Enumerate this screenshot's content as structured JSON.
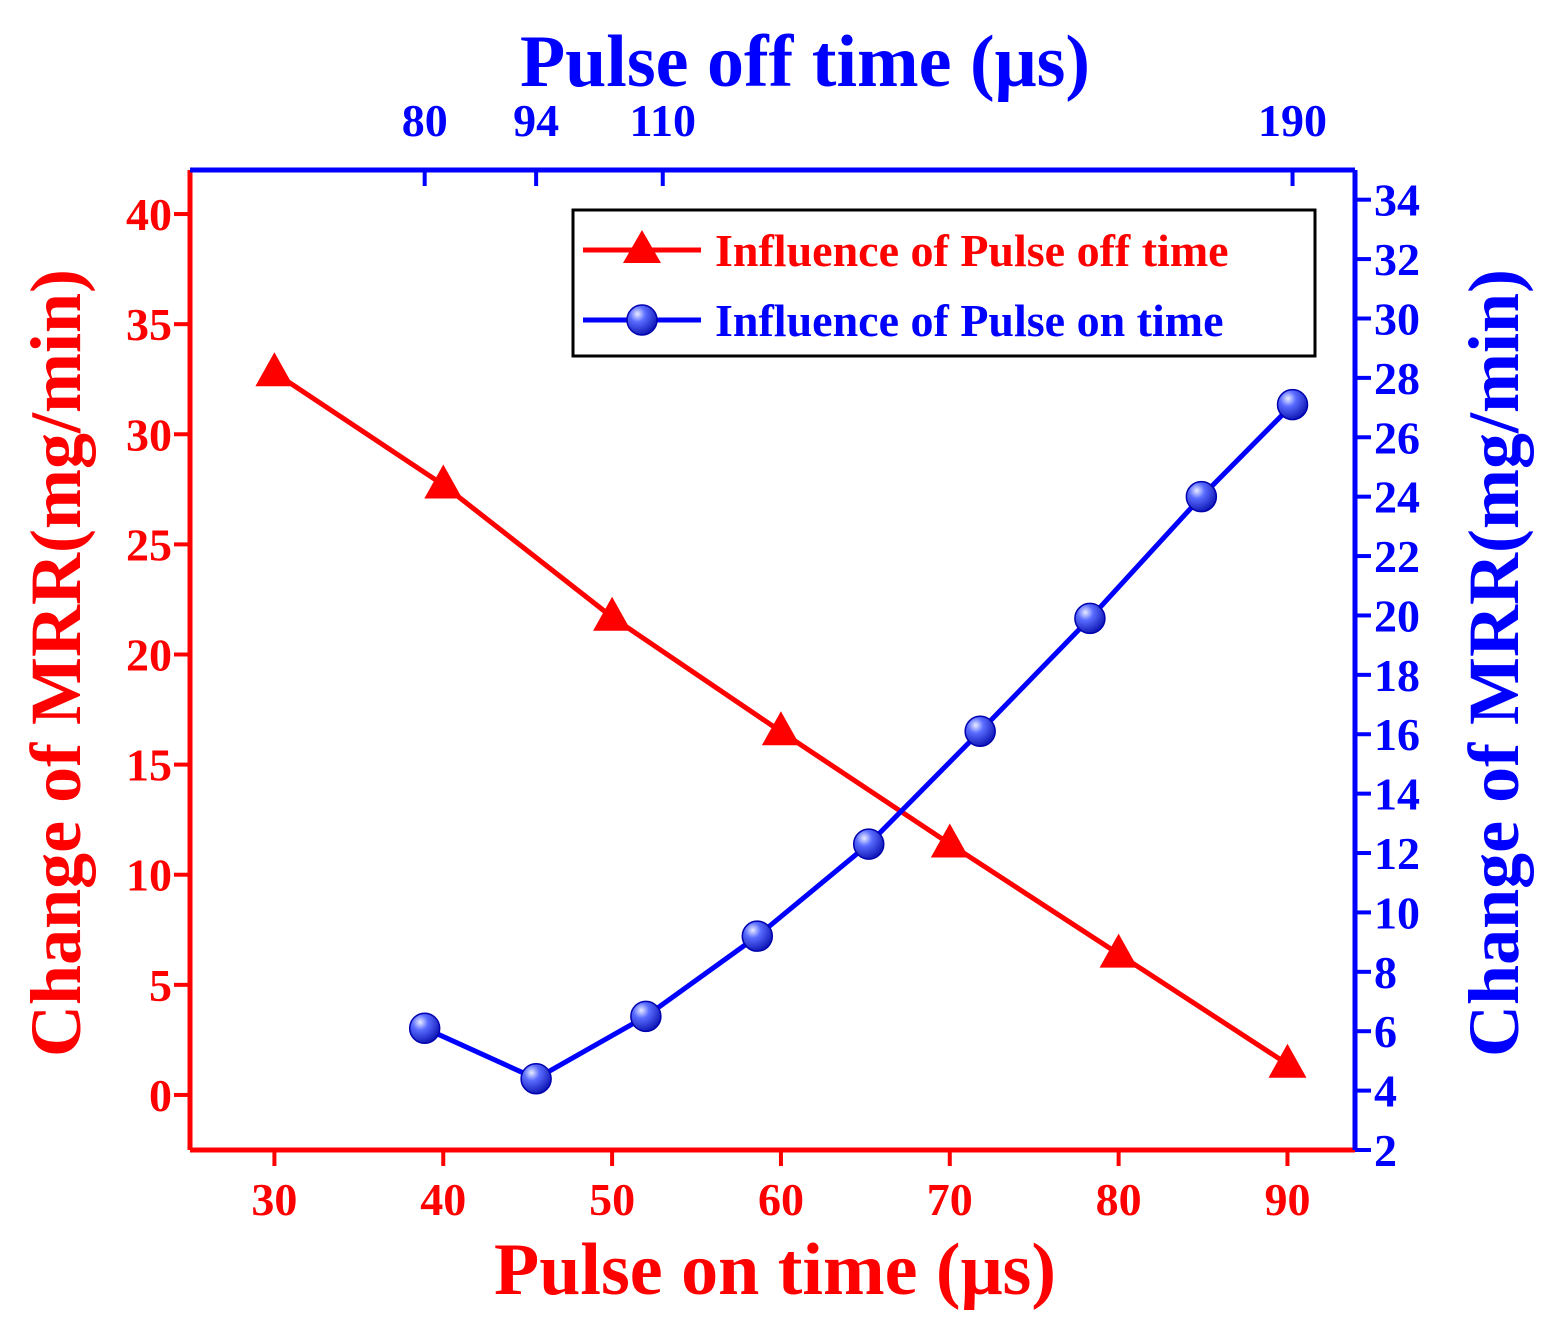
{
  "colors": {
    "red": "#ff0000",
    "blue": "#0000ff",
    "black": "#000000"
  },
  "chart_data": {
    "type": "line",
    "bottom_axis": {
      "title": "Pulse on time (μs)",
      "range": [
        25,
        94
      ],
      "ticks": [
        30,
        40,
        50,
        60,
        70,
        80,
        90
      ]
    },
    "top_axis": {
      "title": "Pulse off time (μs)",
      "ticks": [
        {
          "label": "80",
          "at_on_time": 38.9
        },
        {
          "label": "94",
          "at_on_time": 45.5
        },
        {
          "label": "110",
          "at_on_time": 53.0
        },
        {
          "label": "190",
          "at_on_time": 90.3
        }
      ]
    },
    "left_axis": {
      "title": "Change of MRR(mg/min)",
      "range": [
        -2.5,
        42
      ],
      "ticks": [
        0,
        5,
        10,
        15,
        20,
        25,
        30,
        35,
        40
      ]
    },
    "right_axis": {
      "title": "Change of MRR(mg/min)",
      "range": [
        2,
        35
      ],
      "ticks": [
        2,
        4,
        6,
        8,
        10,
        12,
        14,
        16,
        18,
        20,
        22,
        24,
        26,
        28,
        30,
        32,
        34
      ]
    },
    "series": [
      {
        "name": "Influence of Pulse off time",
        "axis": "left",
        "color": "#ff0000",
        "marker": "triangle",
        "x": [
          30,
          40,
          50,
          60,
          70,
          80,
          90
        ],
        "y": [
          32.8,
          27.7,
          21.7,
          16.5,
          11.4,
          6.4,
          1.4
        ]
      },
      {
        "name": "Influence of Pulse on time",
        "axis": "right",
        "color": "#0000ff",
        "marker": "sphere",
        "x": [
          38.9,
          45.5,
          52.0,
          58.6,
          65.2,
          71.8,
          78.3,
          84.9,
          90.3
        ],
        "y": [
          6.1,
          4.4,
          6.5,
          9.2,
          12.3,
          16.1,
          19.9,
          24.0,
          27.1
        ]
      }
    ],
    "legend": {
      "position": "top-right",
      "entries": [
        "Influence of Pulse off time",
        "Influence of Pulse on time"
      ]
    }
  }
}
